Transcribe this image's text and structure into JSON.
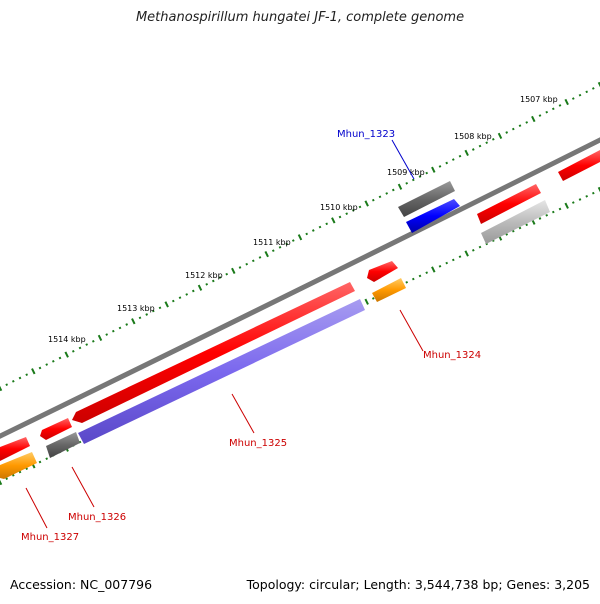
{
  "title": "Methanospirillum hungatei JF-1, complete genome",
  "footer": {
    "accession": "Accession: NC_007796",
    "summary": "Topology: circular; Length: 3,544,738 bp; Genes: 3,205"
  },
  "ticks": {
    "labels": [
      "1507 kbp",
      "1508 kbp",
      "1509 kbp",
      "1510 kbp",
      "1511 kbp",
      "1512 kbp",
      "1513 kbp",
      "1514 kbp"
    ]
  },
  "genes": {
    "mhun_1323": "Mhun_1323",
    "mhun_1324": "Mhun_1324",
    "mhun_1325": "Mhun_1325",
    "mhun_1326": "Mhun_1326",
    "mhun_1327": "Mhun_1327"
  },
  "colors": {
    "forward_gene": "#ff0000",
    "forward_gene_dark": "#cc0000",
    "highlight_gene": "#0000ff",
    "rna_gene": "#ff9900",
    "purple_gene": "#7b68ee",
    "grey_gene": "#666666",
    "light_grey_gene": "#bbbbbb",
    "backbone": "#777777",
    "tick": "#1a7a1a",
    "label_red": "#cc0000",
    "label_blue": "#0000cc"
  }
}
